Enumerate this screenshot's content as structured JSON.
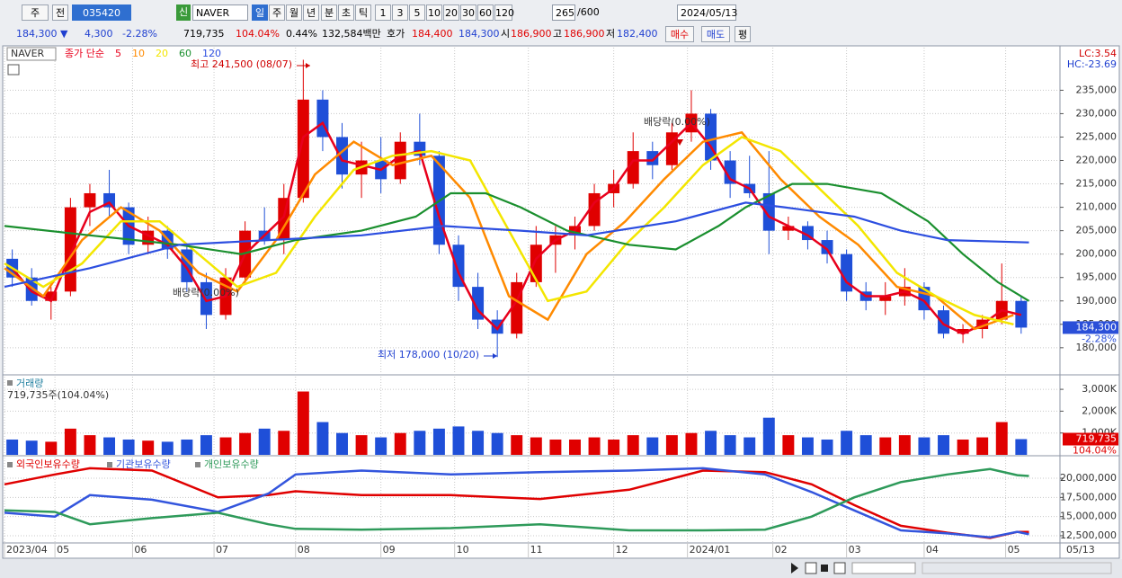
{
  "toolbar": {
    "items": [
      "주",
      "전",
      "035420",
      "신",
      "NAVER",
      "일",
      "주",
      "월",
      "년",
      "분",
      "초",
      "틱",
      "1",
      "3",
      "5",
      "10",
      "20",
      "30",
      "60",
      "120",
      "265",
      "/600",
      "2024/05/13"
    ]
  },
  "quote": [
    "184,300 ▼",
    "4,300",
    "-2.28%",
    "719,735",
    "104.04%",
    "0.44%",
    "132,584백만",
    "호가",
    "184,400",
    "184,300",
    "시",
    "186,900",
    "고",
    "186,900",
    "저",
    "182,400",
    "매수",
    "매도",
    "평"
  ],
  "chart_data": [
    {
      "type": "candlestick",
      "title": "NAVER",
      "legend_title": "종가 단순",
      "xlim": [
        0,
        272
      ],
      "ylim": [
        174400,
        244100
      ],
      "grid": true,
      "up_color": "#e00000",
      "down_color": "#1f4fd8",
      "yticks": [
        {
          "value": 180000,
          "label": "180,000"
        },
        {
          "value": 185000,
          "label": "185,000"
        },
        {
          "value": 190000,
          "label": "190,000"
        },
        {
          "value": 195000,
          "label": "195,000"
        },
        {
          "value": 200000,
          "label": "200,000"
        },
        {
          "value": 205000,
          "label": "205,000"
        },
        {
          "value": 210000,
          "label": "210,000"
        },
        {
          "value": 215000,
          "label": "215,000"
        },
        {
          "value": 220000,
          "label": "220,000"
        },
        {
          "value": 225000,
          "label": "225,000"
        },
        {
          "value": 230000,
          "label": "230,000"
        },
        {
          "value": 235000,
          "label": "235,000"
        }
      ],
      "x": [
        2,
        7,
        12,
        17,
        22,
        27,
        32,
        37,
        42,
        47,
        52,
        57,
        62,
        67,
        72,
        77,
        82,
        87,
        92,
        97,
        102,
        107,
        112,
        117,
        122,
        127,
        132,
        137,
        142,
        147,
        152,
        157,
        162,
        167,
        172,
        177,
        182,
        187,
        192,
        197,
        202,
        207,
        212,
        217,
        222,
        227,
        232,
        237,
        242,
        247,
        252,
        257,
        262
      ],
      "open": [
        199000,
        195000,
        190000,
        192000,
        210000,
        213000,
        210000,
        202000,
        205000,
        201000,
        194000,
        187000,
        195000,
        205000,
        203000,
        212000,
        233000,
        225000,
        217000,
        220000,
        216000,
        224000,
        221000,
        202000,
        193000,
        186000,
        183000,
        194000,
        202000,
        204000,
        206000,
        213000,
        215000,
        222000,
        219000,
        226000,
        230000,
        220000,
        215000,
        213000,
        205000,
        206000,
        203000,
        200000,
        192000,
        190000,
        191000,
        193000,
        188000,
        183000,
        184000,
        186000,
        190000
      ],
      "high": [
        201000,
        197000,
        193000,
        212000,
        215000,
        218000,
        211000,
        208000,
        206000,
        202000,
        196000,
        197000,
        207000,
        210000,
        215000,
        241500,
        235000,
        228000,
        224000,
        225000,
        226000,
        230000,
        222000,
        204000,
        196000,
        188000,
        196000,
        206000,
        206000,
        208000,
        215000,
        218000,
        226000,
        224000,
        228000,
        235000,
        231000,
        222000,
        221000,
        222000,
        208000,
        207000,
        205000,
        201000,
        194000,
        194000,
        197000,
        194000,
        189000,
        185000,
        187000,
        198000,
        191000
      ],
      "low": [
        193000,
        189000,
        186000,
        191000,
        206000,
        208000,
        200000,
        200000,
        199000,
        192000,
        184000,
        186000,
        194000,
        202000,
        200000,
        211000,
        222000,
        214000,
        212000,
        213000,
        215000,
        219000,
        200000,
        190000,
        184000,
        178000,
        182000,
        193000,
        196000,
        201000,
        205000,
        210000,
        214000,
        216000,
        218000,
        224000,
        218000,
        212000,
        212000,
        200000,
        203000,
        201000,
        198000,
        190000,
        188000,
        187000,
        189000,
        186000,
        182000,
        181000,
        182000,
        185000,
        183000
      ],
      "close": [
        195000,
        190000,
        192000,
        210000,
        213000,
        210000,
        202000,
        205000,
        201000,
        194000,
        187000,
        195000,
        205000,
        203000,
        212000,
        233000,
        225000,
        217000,
        220000,
        216000,
        224000,
        221000,
        202000,
        193000,
        186000,
        183000,
        194000,
        202000,
        204000,
        206000,
        213000,
        215000,
        222000,
        219000,
        226000,
        230000,
        220000,
        215000,
        213000,
        205000,
        206000,
        203000,
        200000,
        192000,
        190000,
        191000,
        193000,
        188000,
        183000,
        184000,
        186000,
        190000,
        184300
      ],
      "series": [
        {
          "name": "5",
          "color": "#e8001c",
          "x": [
            2,
            7,
            12,
            17,
            22,
            27,
            32,
            37,
            42,
            47,
            52,
            57,
            62,
            67,
            72,
            77,
            82,
            87,
            92,
            97,
            102,
            107,
            112,
            117,
            122,
            127,
            132,
            137,
            142,
            147,
            152,
            157,
            162,
            167,
            172,
            177,
            182,
            187,
            192,
            197,
            202,
            207,
            212,
            217,
            222,
            227,
            232,
            237,
            242,
            247,
            252,
            257,
            262
          ],
          "values": [
            197000,
            192000,
            190000,
            200000,
            209000,
            211000,
            206000,
            204000,
            202000,
            197000,
            190000,
            191000,
            200000,
            204000,
            208000,
            225000,
            228000,
            220000,
            219000,
            218000,
            221000,
            222000,
            208000,
            196000,
            188000,
            184000,
            190000,
            199000,
            203000,
            205000,
            211000,
            214000,
            220000,
            220000,
            224000,
            228000,
            223000,
            216000,
            214000,
            208000,
            206000,
            204000,
            201000,
            194000,
            191000,
            191000,
            192000,
            190000,
            185000,
            183000,
            185000,
            188000,
            187000
          ]
        },
        {
          "name": "10",
          "color": "#ff8a00",
          "x": [
            0,
            10,
            20,
            30,
            40,
            50,
            60,
            70,
            80,
            90,
            100,
            110,
            120,
            130,
            140,
            150,
            160,
            170,
            180,
            190,
            200,
            210,
            220,
            230,
            240,
            250,
            260
          ],
          "values": [
            197000,
            191000,
            203000,
            210000,
            205000,
            196000,
            192000,
            203000,
            217000,
            224000,
            219000,
            221000,
            212000,
            191000,
            186000,
            200000,
            207000,
            216000,
            224000,
            226000,
            216000,
            208000,
            202000,
            193000,
            191000,
            184000,
            187000
          ]
        },
        {
          "name": "20",
          "color": "#f3e600",
          "x": [
            0,
            10,
            20,
            30,
            40,
            50,
            60,
            70,
            80,
            90,
            100,
            110,
            120,
            130,
            140,
            150,
            160,
            170,
            180,
            190,
            200,
            210,
            220,
            230,
            240,
            250,
            260
          ],
          "values": [
            198000,
            193000,
            198000,
            207000,
            207000,
            200000,
            193000,
            196000,
            208000,
            218000,
            221000,
            222000,
            220000,
            205000,
            190000,
            192000,
            202000,
            210000,
            219000,
            225000,
            222000,
            214000,
            206000,
            196000,
            191000,
            187000,
            185000
          ]
        },
        {
          "name": "60",
          "color": "#1a8f2e",
          "x": [
            0,
            22,
            45,
            61,
            75,
            92,
            106,
            115,
            124,
            133,
            145,
            161,
            173,
            184,
            191,
            203,
            212,
            226,
            238,
            247,
            256,
            264
          ],
          "values": [
            206000,
            204000,
            202000,
            200000,
            203000,
            205000,
            208000,
            213000,
            213000,
            210000,
            205000,
            202000,
            201000,
            206000,
            210000,
            215000,
            215000,
            213000,
            207000,
            200000,
            194000,
            190000
          ]
        },
        {
          "name": "120",
          "color": "#2c4ee0",
          "x": [
            0,
            22,
            45,
            68,
            92,
            113,
            133,
            150,
            173,
            191,
            201,
            219,
            231,
            243,
            264
          ],
          "values": [
            193000,
            197000,
            202000,
            203000,
            204000,
            206000,
            205000,
            204000,
            207000,
            211000,
            210000,
            208000,
            205000,
            203000,
            202500
          ]
        }
      ],
      "annotations": [
        "최고 241,500 (08/07)",
        "최저 178,000 (10/20)",
        "배당락(0.00%)",
        "배당락(0.00%)"
      ],
      "corner_labels": [
        "LC:3.54",
        "HC:-23.69"
      ],
      "last_label": "184,300",
      "last_change": "-2.28%"
    },
    {
      "type": "bar",
      "title": "거래량",
      "subtitle": "719,735주(104.04%)",
      "xlim": [
        0,
        272
      ],
      "ylim": [
        0,
        3580
      ],
      "grid": true,
      "yticks": [
        {
          "value": 1000,
          "label": "1,000K"
        },
        {
          "value": 2000,
          "label": "2,000K"
        },
        {
          "value": 3000,
          "label": "3,000K"
        }
      ],
      "values": [
        700,
        650,
        600,
        1200,
        900,
        800,
        700,
        650,
        600,
        700,
        900,
        800,
        1000,
        1200,
        1100,
        2900,
        1500,
        1000,
        900,
        800,
        1000,
        1100,
        1200,
        1300,
        1100,
        1000,
        900,
        800,
        700,
        700,
        800,
        700,
        900,
        800,
        900,
        1000,
        1100,
        900,
        800,
        1700,
        900,
        800,
        700,
        1100,
        900,
        800,
        900,
        800,
        900,
        700,
        800,
        1500,
        719.735
      ],
      "last_label": "719,735",
      "last_change": "104.04%"
    },
    {
      "type": "line",
      "xlim": [
        0,
        272
      ],
      "ylim": [
        11560000,
        22700000
      ],
      "grid": true,
      "yticks": [
        {
          "value": 12500000,
          "label": "12,500,000"
        },
        {
          "value": 15000000,
          "label": "15,000,000"
        },
        {
          "value": 17500000,
          "label": "17,500,000"
        },
        {
          "value": 20000000,
          "label": "20,000,000"
        }
      ],
      "xticks": [
        {
          "value": 0,
          "label": "2023/04"
        },
        {
          "value": 13,
          "label": "05"
        },
        {
          "value": 33,
          "label": "06"
        },
        {
          "value": 54,
          "label": "07"
        },
        {
          "value": 75,
          "label": "08"
        },
        {
          "value": 97,
          "label": "09"
        },
        {
          "value": 116,
          "label": "10"
        },
        {
          "value": 135,
          "label": "11"
        },
        {
          "value": 157,
          "label": "12"
        },
        {
          "value": 176,
          "label": "2024/01"
        },
        {
          "value": 198,
          "label": "02"
        },
        {
          "value": 217,
          "label": "03"
        },
        {
          "value": 237,
          "label": "04"
        },
        {
          "value": 258,
          "label": "05"
        }
      ],
      "x_end_label": "05/13",
      "x": [
        0,
        13,
        22,
        38,
        55,
        68,
        75,
        92,
        115,
        138,
        161,
        180,
        196,
        208,
        219,
        231,
        243,
        254,
        261,
        264
      ],
      "series": [
        {
          "name": "외국인보유수량",
          "color": "#e00000",
          "values": [
            19200000,
            20500000,
            21300000,
            21000000,
            17500000,
            17800000,
            18300000,
            17800000,
            17800000,
            17300000,
            18500000,
            21000000,
            20800000,
            19200000,
            16500000,
            13800000,
            12900000,
            12200000,
            13000000,
            13000000
          ]
        },
        {
          "name": "기관보유수량",
          "color": "#3355dd",
          "values": [
            15500000,
            15000000,
            17800000,
            17200000,
            15600000,
            18000000,
            20500000,
            21000000,
            20500000,
            20800000,
            21000000,
            21300000,
            20500000,
            18200000,
            15800000,
            13200000,
            12800000,
            12300000,
            13000000,
            12700000
          ]
        },
        {
          "name": "개인보유수량",
          "color": "#2e9a5a",
          "values": [
            15800000,
            15600000,
            14000000,
            14800000,
            15500000,
            14000000,
            13400000,
            13300000,
            13500000,
            14000000,
            13200000,
            13200000,
            13300000,
            15000000,
            17500000,
            19500000,
            20500000,
            21200000,
            20400000,
            20300000
          ]
        }
      ]
    }
  ]
}
